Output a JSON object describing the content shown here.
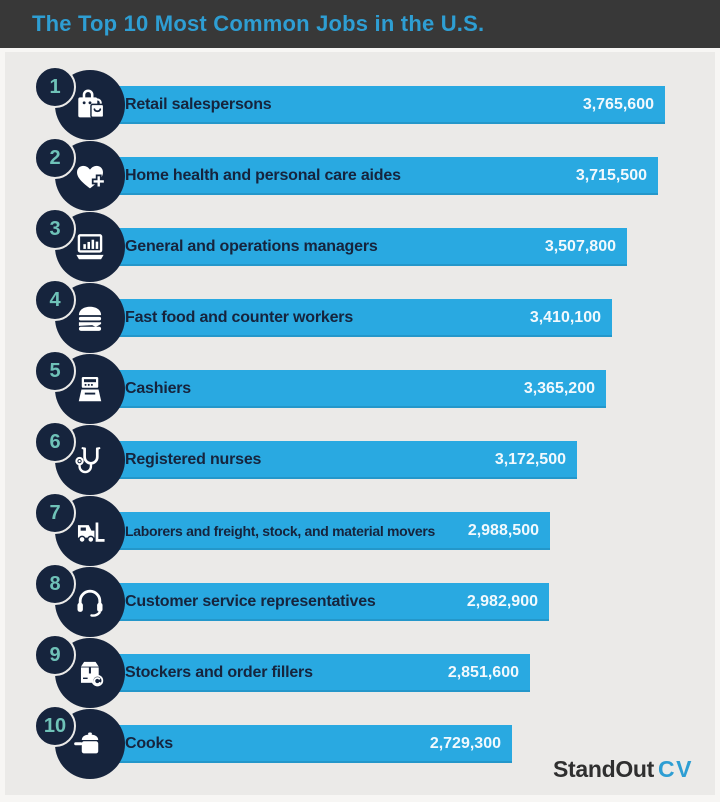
{
  "header": {
    "title": "The Top 10 Most Common Jobs in the U.S."
  },
  "footer": {
    "brand_primary": "StandOut",
    "brand_accent": "CV"
  },
  "colors": {
    "header_bg": "#383838",
    "title_text": "#2e9ed3",
    "bar_fill": "#29a9e1",
    "circle_fill": "#16243d",
    "rank_number": "#6fc2b8",
    "label_text": "#16243d",
    "value_text": "#ffffff",
    "canvas_bg": "#ebeae8",
    "frame_bg": "#f7f6f4"
  },
  "chart_data": {
    "type": "bar",
    "orientation": "horizontal",
    "title": "The Top 10 Most Common Jobs in the U.S.",
    "xlabel": "",
    "ylabel": "",
    "xlim": [
      0,
      3765600
    ],
    "grid": false,
    "legend": false,
    "ranks": [
      1,
      2,
      3,
      4,
      5,
      6,
      7,
      8,
      9,
      10
    ],
    "categories": [
      "Retail salespersons",
      "Home health and personal care aides",
      "General and operations managers",
      "Fast food and counter workers",
      "Cashiers",
      "Registered nurses",
      "Laborers and freight, stock, and material movers",
      "Customer service representatives",
      "Stockers and order fillers",
      "Cooks"
    ],
    "values": [
      3765600,
      3715500,
      3507800,
      3410100,
      3365200,
      3172500,
      2988500,
      2982900,
      2851600,
      2729300
    ],
    "value_labels": [
      "3,765,600",
      "3,715,500",
      "3,507,800",
      "3,410,100",
      "3,365,200",
      "3,172,500",
      "2,988,500",
      "2,982,900",
      "2,851,600",
      "2,729,300"
    ],
    "icons": [
      "shopping-bags",
      "heart-plus",
      "laptop-chart",
      "burger",
      "cash-register",
      "stethoscope",
      "forklift",
      "headset",
      "package-restock",
      "cooking-pot"
    ],
    "max_value": 3765600
  }
}
